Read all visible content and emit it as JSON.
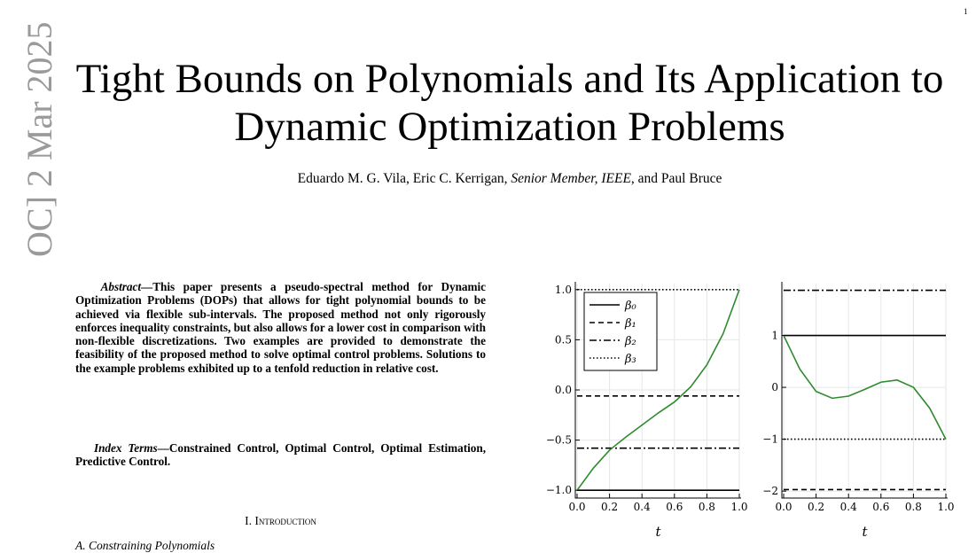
{
  "paper": {
    "page_number": "1",
    "side_stamp": "OC] 2 Mar 2025",
    "title_line1": "Tight Bounds on Polynomials and Its Application to",
    "title_line2": "Dynamic Optimization Problems",
    "authors_pre": "Eduardo M. G. Vila, Eric C. Kerrigan, ",
    "authors_role": "Senior Member, IEEE",
    "authors_post": ", and Paul Bruce",
    "abstract_label": "Abstract",
    "abstract": "—This paper presents a pseudo-spectral method for Dynamic Optimization Problems (DOPs) that allows for tight polynomial bounds to be achieved via flexible sub-intervals. The proposed method not only rigorously enforces inequality constraints, but also allows for a lower cost in comparison with non-flexible discretizations. Two examples are provided to demonstrate the feasibility of the proposed method to solve optimal control problems. Solutions to the example problems exhibited up to a tenfold reduction in relative cost.",
    "index_label": "Index Terms",
    "index_terms": "—Constrained Control, Optimal Control, Optimal Estimation, Predictive Control.",
    "section": "I. Introduction",
    "subsection": "A. Constraining Polynomials"
  },
  "chart_data": [
    {
      "type": "line",
      "xlabel": "t",
      "grid": true,
      "legend": "upper left",
      "x": [
        0,
        0.1,
        0.2,
        0.3,
        0.4,
        0.5,
        0.6,
        0.7,
        0.8,
        0.9,
        1
      ],
      "xlim": [
        0,
        1
      ],
      "ylim": [
        -1.06,
        1.06
      ],
      "xticks": [
        {
          "value": 0,
          "label": "0.0"
        },
        0.2,
        0.4,
        0.6,
        0.8,
        {
          "value": 1,
          "label": "1.0"
        }
      ],
      "yticks": [
        {
          "value": -1,
          "label": "−1.0"
        },
        {
          "value": -0.5,
          "label": "−0.5"
        },
        {
          "value": 0,
          "label": "0.0"
        },
        0.5,
        {
          "value": 1,
          "label": "1.0"
        }
      ],
      "series": [
        {
          "name": "β₀",
          "color": "#000000",
          "dash": "solid",
          "values": [
            -1,
            -1,
            -1,
            -1,
            -1,
            -1,
            -1,
            -1,
            -1,
            -1,
            -1
          ]
        },
        {
          "name": "β₁",
          "color": "#000000",
          "dash": "dashed",
          "values": [
            -0.06,
            -0.06,
            -0.06,
            -0.06,
            -0.06,
            -0.06,
            -0.06,
            -0.06,
            -0.06,
            -0.06,
            -0.06
          ]
        },
        {
          "name": "β₂",
          "color": "#000000",
          "dash": "dashdot",
          "values": [
            -0.58,
            -0.58,
            -0.58,
            -0.58,
            -0.58,
            -0.58,
            -0.58,
            -0.58,
            -0.58,
            -0.58,
            -0.58
          ]
        },
        {
          "name": "β₃",
          "color": "#000000",
          "dash": "dotted",
          "values": [
            1,
            1,
            1,
            1,
            1,
            1,
            1,
            1,
            1,
            1,
            1
          ]
        },
        {
          "color": "#2e8b2e",
          "dash": "solid",
          "values": [
            -1,
            -0.78,
            -0.6,
            -0.47,
            -0.35,
            -0.23,
            -0.12,
            0.03,
            0.25,
            0.56,
            1
          ]
        }
      ]
    },
    {
      "type": "line",
      "xlabel": "t",
      "grid": true,
      "x": [
        0,
        0.1,
        0.2,
        0.3,
        0.4,
        0.5,
        0.6,
        0.7,
        0.8,
        0.9,
        1
      ],
      "xlim": [
        0,
        1
      ],
      "ylim": [
        -2.1,
        2
      ],
      "xticks": [
        {
          "value": 0,
          "label": "0.0"
        },
        0.2,
        0.4,
        0.6,
        0.8,
        {
          "value": 1,
          "label": "1.0"
        }
      ],
      "yticks": [
        {
          "value": -2,
          "label": "−2"
        },
        {
          "value": -1,
          "label": "−1"
        },
        0,
        1
      ],
      "series": [
        {
          "color": "#000000",
          "dash": "solid",
          "values": [
            1,
            1,
            1,
            1,
            1,
            1,
            1,
            1,
            1,
            1,
            1
          ]
        },
        {
          "color": "#000000",
          "dash": "dashed",
          "values": [
            -1.97,
            -1.97,
            -1.97,
            -1.97,
            -1.97,
            -1.97,
            -1.97,
            -1.97,
            -1.97,
            -1.97,
            -1.97
          ]
        },
        {
          "color": "#000000",
          "dash": "dashdot",
          "values": [
            1.87,
            1.87,
            1.87,
            1.87,
            1.87,
            1.87,
            1.87,
            1.87,
            1.87,
            1.87,
            1.87
          ]
        },
        {
          "color": "#000000",
          "dash": "dotted",
          "values": [
            -1,
            -1,
            -1,
            -1,
            -1,
            -1,
            -1,
            -1,
            -1,
            -1,
            -1
          ]
        },
        {
          "color": "#2e8b2e",
          "dash": "solid",
          "values": [
            1,
            0.35,
            -0.08,
            -0.21,
            -0.17,
            -0.04,
            0.1,
            0.14,
            0,
            -0.4,
            -1
          ]
        }
      ]
    }
  ]
}
